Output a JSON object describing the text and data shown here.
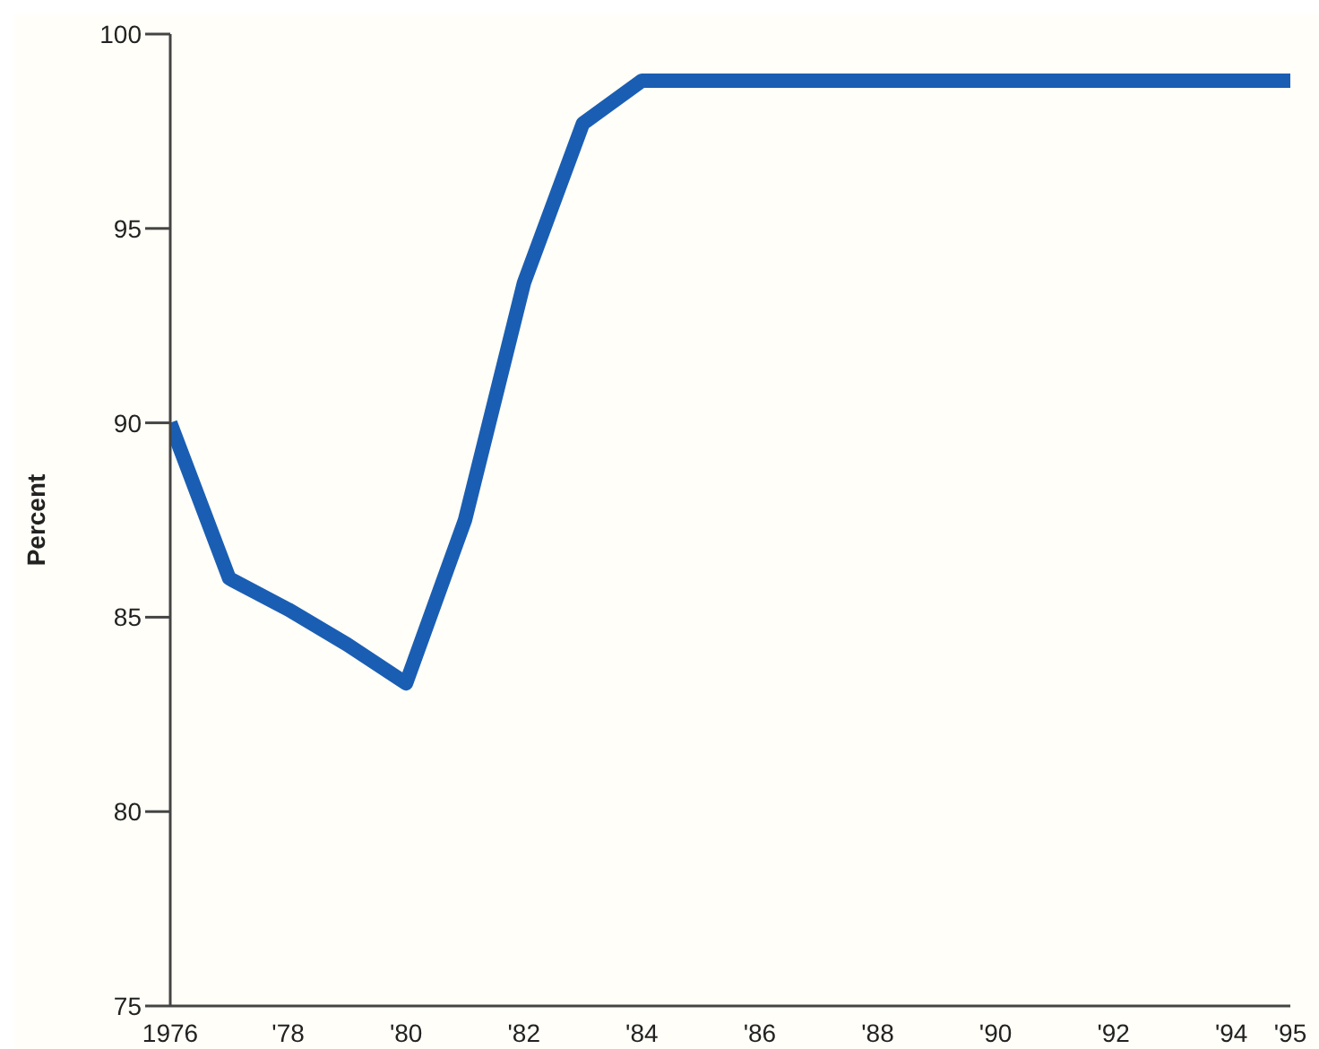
{
  "chart_data": {
    "type": "line",
    "ylabel": "Percent",
    "x": [
      1976,
      1977,
      1978,
      1979,
      1980,
      1981,
      1982,
      1983,
      1984,
      1985,
      1986,
      1987,
      1988,
      1989,
      1990,
      1991,
      1992,
      1993,
      1994,
      1995
    ],
    "series": [
      {
        "color": "#1a5eb4",
        "values": [
          90,
          86,
          85.2,
          84.3,
          83.3,
          87.5,
          93.6,
          97.7,
          98.8,
          98.8,
          98.8,
          98.8,
          98.8,
          98.8,
          98.8,
          98.8,
          98.8,
          98.8,
          98.8,
          98.8
        ]
      }
    ],
    "xlim": [
      1976,
      1995
    ],
    "xticks": [
      {
        "value": 1976,
        "label": "1976"
      },
      {
        "value": 1978,
        "label": "'78"
      },
      {
        "value": 1980,
        "label": "'80"
      },
      {
        "value": 1982,
        "label": "'82"
      },
      {
        "value": 1984,
        "label": "'84"
      },
      {
        "value": 1986,
        "label": "'86"
      },
      {
        "value": 1988,
        "label": "'88"
      },
      {
        "value": 1990,
        "label": "'90"
      },
      {
        "value": 1992,
        "label": "'92"
      },
      {
        "value": 1994,
        "label": "'94"
      },
      {
        "value": 1995,
        "label": "'95"
      }
    ],
    "ylim": [
      75,
      100
    ],
    "yticks": [
      75,
      80,
      85,
      90,
      95,
      100
    ],
    "grid": false,
    "legend": false,
    "marker": "none",
    "line_style": "solid"
  }
}
